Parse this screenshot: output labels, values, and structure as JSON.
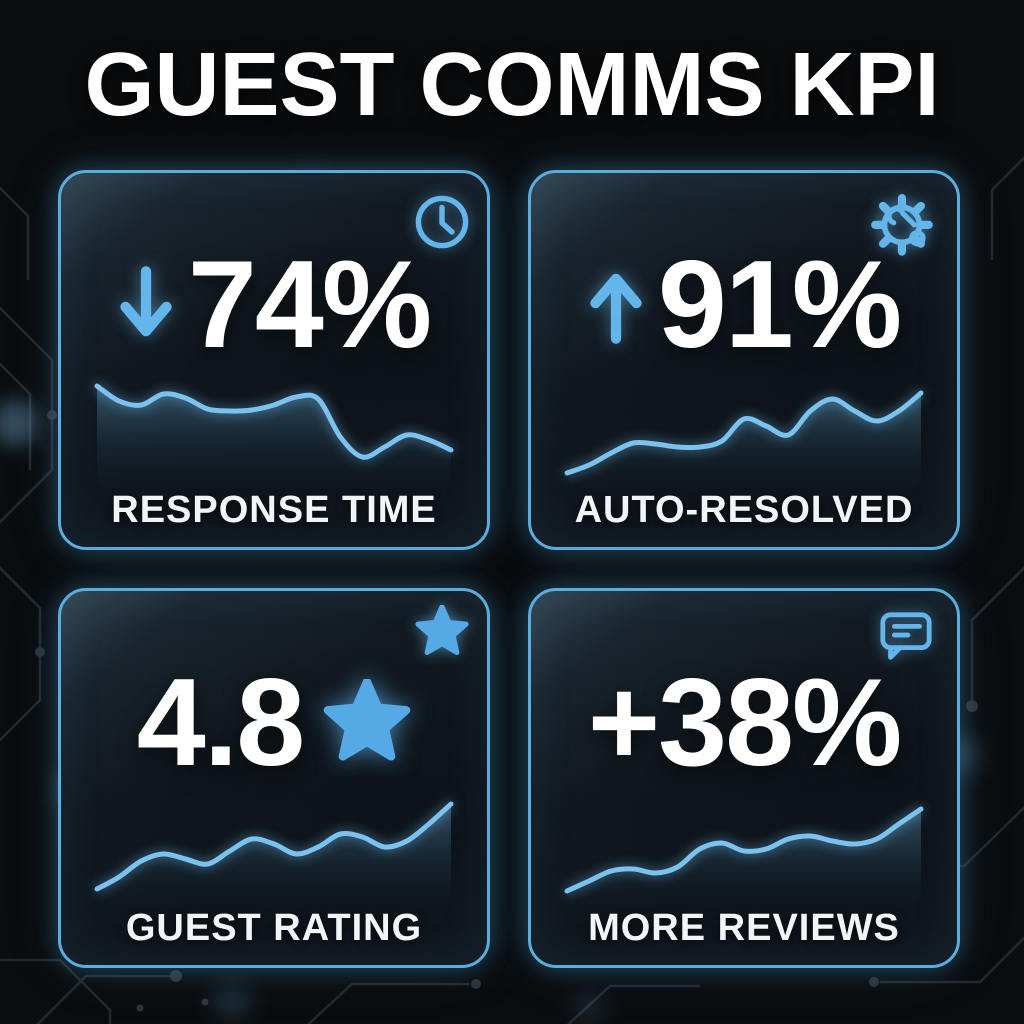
{
  "title": "GUEST COMMS KPI",
  "colors": {
    "background": "#0a0c0e",
    "card_border": "#5badde",
    "accent": "#64b5ea",
    "sparkline": "#7cc2ee",
    "value_text": "#ffffff",
    "label_text": "#f2f5f7"
  },
  "cards": [
    {
      "id": "response-time",
      "value": "74%",
      "trend": "down",
      "icon": "clock-icon",
      "label": "RESPONSE TIME"
    },
    {
      "id": "auto-resolved",
      "value": "91%",
      "trend": "up",
      "icon": "gear-wrench-icon",
      "label": "AUTO-RESOLVED"
    },
    {
      "id": "guest-rating",
      "value": "4.8",
      "trend": "star",
      "icon": "star-icon",
      "label": "GUEST RATING"
    },
    {
      "id": "more-reviews",
      "value": "+38%",
      "trend": "none",
      "icon": "chat-bubble-icon",
      "label": "MORE REVIEWS"
    }
  ],
  "chart_data": [
    {
      "type": "line",
      "title": "RESPONSE TIME",
      "metric": "74%",
      "direction": "down",
      "x": [
        0,
        1,
        2,
        3,
        4,
        5,
        6,
        7,
        8,
        9,
        10,
        11,
        12,
        13,
        14,
        15,
        16
      ],
      "values": [
        95,
        80,
        76,
        87,
        83,
        72,
        70,
        71,
        76,
        84,
        82,
        44,
        24,
        34,
        46,
        41,
        31
      ],
      "ylim": [
        0,
        100
      ],
      "grid": false,
      "legend": "none",
      "area_fill": true
    },
    {
      "type": "line",
      "title": "AUTO-RESOLVED",
      "metric": "91%",
      "direction": "up",
      "x": [
        0,
        1,
        2,
        3,
        4,
        5,
        6,
        7,
        8,
        9,
        10,
        11,
        12,
        13,
        14,
        15,
        16
      ],
      "values": [
        8,
        16,
        28,
        38,
        37,
        34,
        34,
        40,
        62,
        55,
        46,
        70,
        82,
        70,
        60,
        70,
        88
      ],
      "ylim": [
        0,
        100
      ],
      "grid": false,
      "legend": "none",
      "area_fill": true
    },
    {
      "type": "line",
      "title": "GUEST RATING",
      "metric": "4.8",
      "direction": "up",
      "x": [
        0,
        1,
        2,
        3,
        4,
        5,
        6,
        7,
        8,
        9,
        10,
        11,
        12,
        13,
        14,
        15,
        16
      ],
      "values": [
        10,
        22,
        38,
        45,
        40,
        35,
        48,
        60,
        55,
        45,
        52,
        65,
        62,
        52,
        58,
        75,
        95
      ],
      "ylim": [
        0,
        100
      ],
      "grid": false,
      "legend": "none",
      "area_fill": true
    },
    {
      "type": "line",
      "title": "MORE REVIEWS",
      "metric": "+38%",
      "direction": "up",
      "x": [
        0,
        1,
        2,
        3,
        4,
        5,
        6,
        7,
        8,
        9,
        10,
        11,
        12,
        13,
        14,
        15,
        16
      ],
      "values": [
        8,
        18,
        28,
        30,
        26,
        32,
        50,
        56,
        48,
        50,
        60,
        63,
        58,
        55,
        60,
        75,
        90
      ],
      "ylim": [
        0,
        100
      ],
      "grid": false,
      "legend": "none",
      "area_fill": true
    }
  ]
}
